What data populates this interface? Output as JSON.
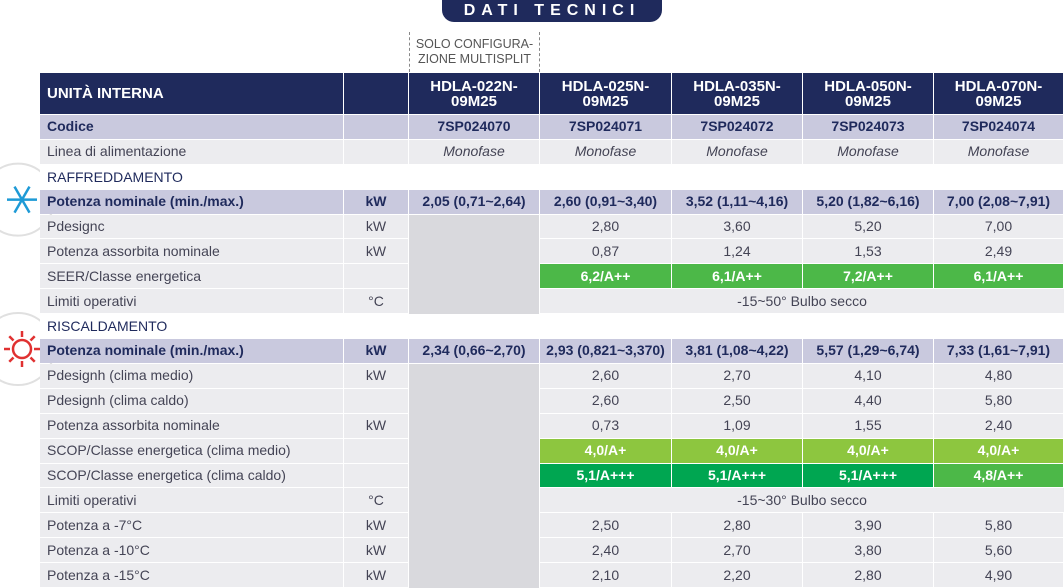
{
  "header": {
    "title": "DATI TECNICI",
    "note": "SOLO CONFIGURA-\nZIONE MULTISPLIT"
  },
  "table": {
    "head": {
      "label": "UNITÀ INTERNA",
      "models": [
        "HDLA-022N-\n09M25",
        "HDLA-025N-\n09M25",
        "HDLA-035N-\n09M25",
        "HDLA-050N-\n09M25",
        "HDLA-070N-\n09M25"
      ]
    },
    "rows": [
      {
        "label": "Codice",
        "style": "strong",
        "values": [
          "7SP024070",
          "7SP024071",
          "7SP024072",
          "7SP024073",
          "7SP024074"
        ]
      },
      {
        "label": "Linea di alimentazione",
        "style": "italic",
        "values": [
          "Monofase",
          "Monofase",
          "Monofase",
          "Monofase",
          "Monofase"
        ]
      },
      {
        "section": "RAFFREDDAMENTO",
        "icon": "cold"
      },
      {
        "label": "Potenza nominale (min./max.)",
        "unit": "kW",
        "style": "strong",
        "values": [
          "2,05 (0,71~2,64)",
          "2,60 (0,91~3,40)",
          "3,52 (1,11~4,16)",
          "5,20 (1,82~6,16)",
          "7,00 (2,08~7,91)"
        ]
      },
      {
        "label": "Pdesignc",
        "unit": "kW",
        "values": [
          "2,80",
          "3,60",
          "5,20",
          "7,00"
        ]
      },
      {
        "label": "Potenza assorbita nominale",
        "unit": "kW",
        "values": [
          "0,87",
          "1,24",
          "1,53",
          "2,49"
        ]
      },
      {
        "label": "SEER/Classe energetica",
        "values": [
          "6,2/A++",
          "6,1/A++",
          "7,2/A++",
          "6,1/A++"
        ],
        "colors": [
          "#4cb848",
          "#4cb848",
          "#4cb848",
          "#4cb848"
        ]
      },
      {
        "label": "Limiti operativi",
        "unit": "°C",
        "span": "-15~50° Bulbo secco"
      },
      {
        "section": "RISCALDAMENTO",
        "icon": "hot"
      },
      {
        "label": "Potenza nominale (min./max.)",
        "unit": "kW",
        "style": "strong",
        "values": [
          "2,34 (0,66~2,70)",
          "2,93 (0,821~3,370)",
          "3,81 (1,08~4,22)",
          "5,57 (1,29~6,74)",
          "7,33 (1,61~7,91)"
        ]
      },
      {
        "label": "Pdesignh (clima medio)",
        "unit": "kW",
        "values": [
          "2,60",
          "2,70",
          "4,10",
          "4,80"
        ]
      },
      {
        "label": "Pdesignh (clima caldo)",
        "values": [
          "2,60",
          "2,50",
          "4,40",
          "5,80"
        ]
      },
      {
        "label": "Potenza assorbita nominale",
        "unit": "kW",
        "values": [
          "0,73",
          "1,09",
          "1,55",
          "2,40"
        ]
      },
      {
        "label": "SCOP/Classe energetica (clima medio)",
        "values": [
          "4,0/A+",
          "4,0/A+",
          "4,0/A+",
          "4,0/A+"
        ],
        "colors": [
          "#8dc63f",
          "#8dc63f",
          "#8dc63f",
          "#8dc63f"
        ]
      },
      {
        "label": "SCOP/Classe energetica (clima caldo)",
        "values": [
          "5,1/A+++",
          "5,1/A+++",
          "5,1/A+++",
          "4,8/A++"
        ],
        "colors": [
          "#00a651",
          "#00a651",
          "#00a651",
          "#4cb848"
        ]
      },
      {
        "label": "Limiti operativi",
        "unit": "°C",
        "span": "-15~30° Bulbo secco"
      },
      {
        "label": "Potenza a -7°C",
        "unit": "kW",
        "values": [
          "2,50",
          "2,80",
          "3,90",
          "5,80"
        ]
      },
      {
        "label": "Potenza a -10°C",
        "unit": "kW",
        "values": [
          "2,40",
          "2,70",
          "3,80",
          "5,60"
        ]
      },
      {
        "label": "Potenza a -15°C",
        "unit": "kW",
        "values": [
          "2,10",
          "2,20",
          "2,80",
          "4,90"
        ]
      }
    ]
  }
}
